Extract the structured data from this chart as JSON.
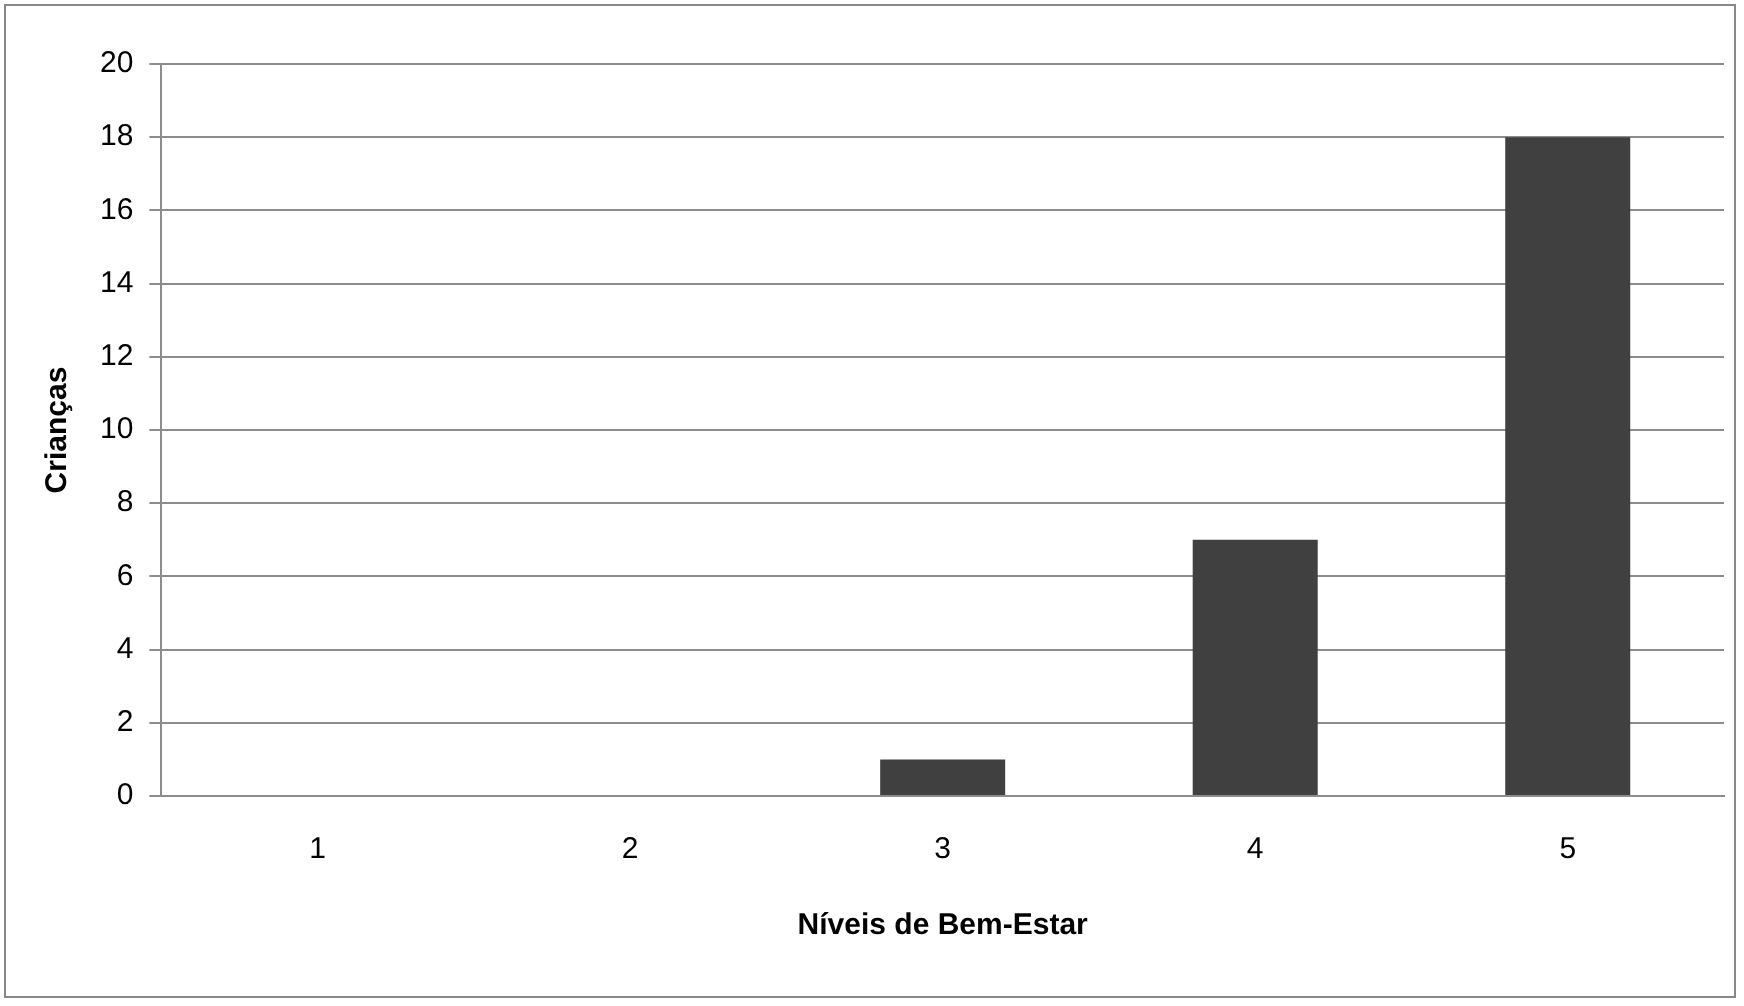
{
  "chart_data": {
    "type": "bar",
    "xlabel": "Níveis de Bem-Estar",
    "ylabel": "Crianças",
    "categories": [
      "1",
      "2",
      "3",
      "4",
      "5"
    ],
    "values": [
      0,
      0,
      1,
      7,
      18
    ],
    "color": "#404040",
    "ylim": [
      0,
      20
    ],
    "yticks": [
      0,
      2,
      4,
      6,
      8,
      10,
      12,
      14,
      16,
      18,
      20
    ],
    "grid": "y",
    "legend": false
  }
}
